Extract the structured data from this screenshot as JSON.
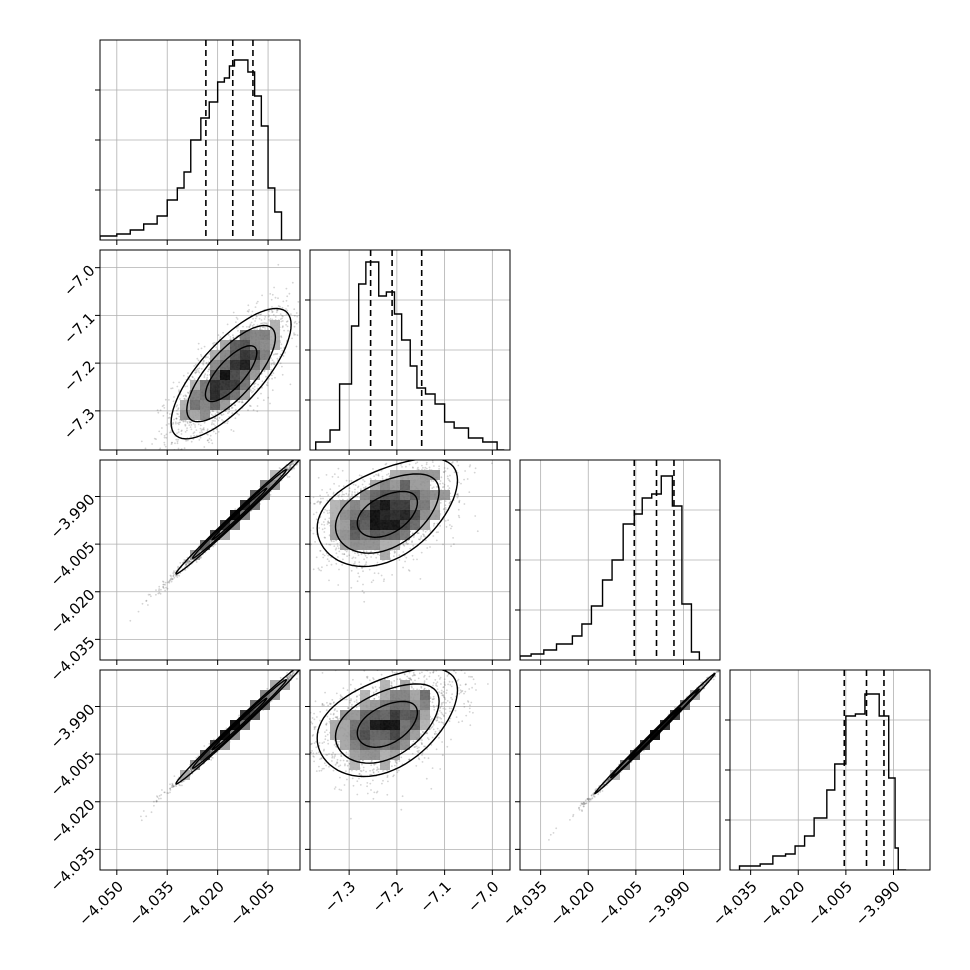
{
  "chart_data": {
    "type": "corner",
    "n_params": 4,
    "grid": true,
    "colors": {
      "line": "#000000",
      "grid": "#b0b0b0",
      "points": "#555555",
      "density_dark": "#000000"
    },
    "params": [
      {
        "axis_range": [
          -4.055,
          -3.9955
        ],
        "tick_values": [
          -4.05,
          -4.035,
          -4.02,
          -4.005
        ],
        "tick_labels": [
          "−4.050",
          "−4.035",
          "−4.020",
          "−4.005"
        ],
        "quantiles": [
          -4.0235,
          -4.0155,
          -4.0095
        ]
      },
      {
        "axis_range": [
          -7.382,
          -6.963
        ],
        "tick_values": [
          -7.3,
          -7.2,
          -7.1,
          -7.0
        ],
        "tick_labels": [
          "−7.3",
          "−7.2",
          "−7.1",
          "−7.0"
        ],
        "quantiles": [
          -7.255,
          -7.21,
          -7.148
        ]
      },
      {
        "axis_range": [
          -4.0415,
          -3.9785
        ],
        "tick_values": [
          -4.035,
          -4.02,
          -4.005,
          -3.99
        ],
        "tick_labels": [
          "−4.035",
          "−4.020",
          "−4.005",
          "−3.990"
        ],
        "quantiles": [
          -4.0055,
          -3.9985,
          -3.993
        ]
      },
      {
        "axis_range": [
          -4.0415,
          -3.9785
        ],
        "tick_values": [
          -4.035,
          -4.02,
          -4.005,
          -3.99
        ],
        "tick_labels": [
          "−4.035",
          "−4.020",
          "−4.005",
          "−3.990"
        ],
        "quantiles": [
          -4.0055,
          -3.9985,
          -3.993
        ]
      }
    ],
    "hist_yticks": [
      0.25,
      0.5,
      0.75
    ],
    "histograms": [
      {
        "param": 0,
        "edges": [
          -4.055,
          -4.05,
          -4.046,
          -4.042,
          -4.038,
          -4.035,
          -4.032,
          -4.03,
          -4.028,
          -4.025,
          -4.0225,
          -4.02,
          -4.018,
          -4.0165,
          -4.015,
          -4.013,
          -4.011,
          -4.009,
          -4.007,
          -4.005,
          -4.003,
          -4.001
        ],
        "values": [
          0.02,
          0.03,
          0.05,
          0.08,
          0.12,
          0.2,
          0.26,
          0.34,
          0.5,
          0.61,
          0.69,
          0.79,
          0.81,
          0.87,
          0.9,
          0.9,
          0.84,
          0.72,
          0.57,
          0.26,
          0.14,
          0.0
        ]
      },
      {
        "param": 1,
        "edges": [
          -7.37,
          -7.34,
          -7.32,
          -7.295,
          -7.28,
          -7.265,
          -7.25,
          -7.238,
          -7.222,
          -7.205,
          -7.19,
          -7.172,
          -7.158,
          -7.14,
          -7.12,
          -7.1,
          -7.08,
          -7.05,
          -7.02,
          -6.99,
          -6.975
        ],
        "values": [
          0.04,
          0.1,
          0.33,
          0.62,
          0.83,
          0.94,
          0.94,
          0.77,
          0.79,
          0.68,
          0.55,
          0.42,
          0.31,
          0.28,
          0.23,
          0.14,
          0.11,
          0.06,
          0.04,
          0.0
        ]
      },
      {
        "param": 2,
        "edges": [
          -4.0415,
          -4.038,
          -4.034,
          -4.03,
          -4.025,
          -4.022,
          -4.019,
          -4.0155,
          -4.0125,
          -4.009,
          -4.0055,
          -4.003,
          -4.0,
          -3.997,
          -3.9935,
          -3.9905,
          -3.9875,
          -3.985
        ],
        "values": [
          0.02,
          0.03,
          0.05,
          0.08,
          0.12,
          0.18,
          0.27,
          0.4,
          0.5,
          0.68,
          0.73,
          0.81,
          0.83,
          0.92,
          0.77,
          0.28,
          0.04
        ]
      },
      {
        "param": 3,
        "edges": [
          -4.0385,
          -4.032,
          -4.028,
          -4.024,
          -4.021,
          -4.018,
          -4.015,
          -4.011,
          -4.0085,
          -4.005,
          -4.002,
          -3.999,
          -3.997,
          -3.9945,
          -3.9915,
          -3.9895,
          -3.9885,
          -3.986
        ],
        "values": [
          0.02,
          0.03,
          0.07,
          0.08,
          0.12,
          0.17,
          0.26,
          0.4,
          0.53,
          0.77,
          0.78,
          0.88,
          0.88,
          0.77,
          0.46,
          0.11,
          0.0
        ]
      }
    ],
    "pairs": [
      {
        "x": 0,
        "y": 1,
        "center": [
          -4.016,
          -7.222
        ],
        "sigma": [
          0.0085,
          0.065
        ],
        "corr": 0.75,
        "curvature": 0.0,
        "cloud_x": [
          -4.05,
          -4.001
        ],
        "cloud_y": [
          -7.36,
          -6.97
        ]
      },
      {
        "x": 0,
        "y": 2,
        "center": [
          -4.0135,
          -3.9955
        ],
        "sigma": [
          0.009,
          0.009
        ],
        "corr": 0.995,
        "curvature": 0.0,
        "cloud_x": [
          -4.045,
          -3.999
        ],
        "cloud_y": [
          -4.036,
          -3.981
        ]
      },
      {
        "x": 1,
        "y": 2,
        "center": [
          -7.22,
          -3.995
        ],
        "sigma": [
          0.07,
          0.008
        ],
        "corr": 0.45,
        "curvature": 0.0015,
        "cloud_x": [
          -7.36,
          -7.04
        ],
        "cloud_y": [
          -4.025,
          -3.982
        ]
      },
      {
        "x": 0,
        "y": 3,
        "center": [
          -4.0135,
          -3.9955
        ],
        "sigma": [
          0.009,
          0.009
        ],
        "corr": 0.995,
        "curvature": 0.0,
        "cloud_x": [
          -4.045,
          -3.999
        ],
        "cloud_y": [
          -4.036,
          -3.981
        ]
      },
      {
        "x": 1,
        "y": 3,
        "center": [
          -7.22,
          -3.995
        ],
        "sigma": [
          0.07,
          0.008
        ],
        "corr": 0.45,
        "curvature": 0.0015,
        "cloud_x": [
          -7.36,
          -7.04
        ],
        "cloud_y": [
          -4.025,
          -3.982
        ]
      },
      {
        "x": 2,
        "y": 3,
        "center": [
          -3.999,
          -3.9985
        ],
        "sigma": [
          0.009,
          0.009
        ],
        "corr": 0.998,
        "curvature": 0.0,
        "cloud_x": [
          -4.036,
          -3.985
        ],
        "cloud_y": [
          -4.035,
          -3.983
        ]
      }
    ]
  }
}
